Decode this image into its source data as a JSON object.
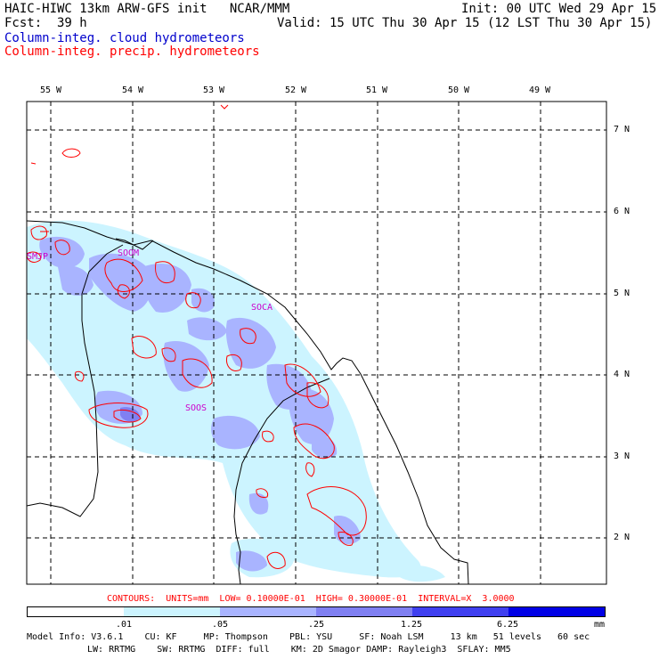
{
  "header": {
    "model_line": "HAIC-HIWC 13km ARW-GFS init   NCAR/MMM",
    "init": "Init: 00 UTC Wed 29 Apr 15",
    "fcst_label": "Fcst:",
    "fcst_value": "39 h",
    "valid": "Valid: 15 UTC Thu 30 Apr 15 (12 LST Thu 30 Apr 15)",
    "field1": "Column-integ. cloud hydrometeors",
    "field2": "Column-integ. precip. hydrometeors"
  },
  "map": {
    "lon_labels": [
      "55 W",
      "54 W",
      "53 W",
      "52 W",
      "51 W",
      "50 W",
      "49 W"
    ],
    "lat_labels": [
      "7 N",
      "6 N",
      "5 N",
      "4 N",
      "3 N",
      "2 N"
    ],
    "stations": [
      "SMJP",
      "SOCA",
      "SOOS",
      "SOOM"
    ]
  },
  "contours": {
    "line": "CONTOURS:  UNITS=mm  LOW= 0.10000E-01  HIGH= 0.30000E-01  INTERVAL=X  3.0000"
  },
  "legend": {
    "ticks": [
      ".01",
      ".05",
      ".25",
      "1.25",
      "6.25"
    ],
    "unit": "mm",
    "colors": [
      "#ffffff",
      "#ccf4ff",
      "#a9b4ff",
      "#8080f2",
      "#4040f0",
      "#0000e6"
    ]
  },
  "footer": {
    "line1": "Model Info: V3.6.1    CU: KF     MP: Thompson    PBL: YSU     SF: Noah LSM     13 km   51 levels   60 sec",
    "line2": "LW: RRTMG    SW: RRTMG  DIFF: full    KM: 2D Smagor DAMP: Rayleigh3  SFLAY: MM5"
  }
}
